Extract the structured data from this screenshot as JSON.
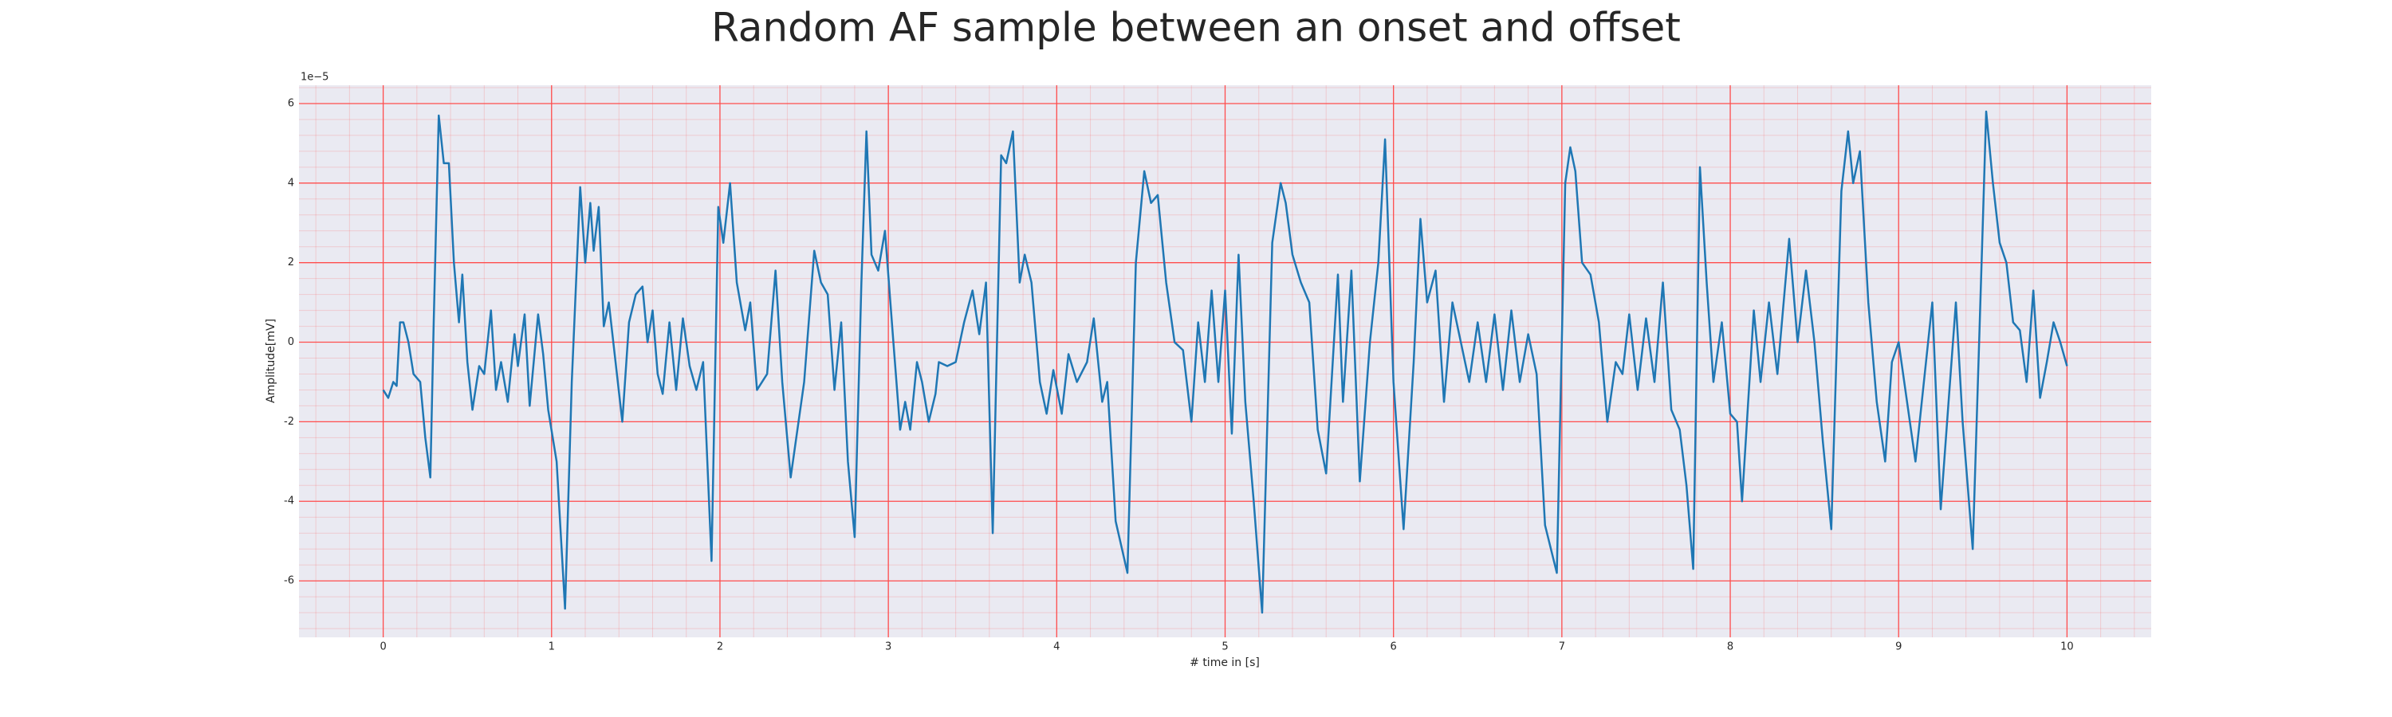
{
  "chart_data": {
    "type": "line",
    "title": "Random AF sample between an onset and offset",
    "xlabel": "# time in [s]",
    "ylabel": "Amplitude[mV]",
    "y_offset_label": "1e−5",
    "xlim": [
      -0.5,
      10.5
    ],
    "ylim": [
      -7.42,
      6.46
    ],
    "xticks": [
      0,
      1,
      2,
      3,
      4,
      5,
      6,
      7,
      8,
      9,
      10
    ],
    "yticks": [
      -6,
      -4,
      -2,
      0,
      2,
      4,
      6
    ],
    "grid": true,
    "minor_grid": true,
    "grid_color": "#ff4d4d",
    "background": "#eaeaf2",
    "x": [
      0.0,
      0.03,
      0.06,
      0.08,
      0.1,
      0.12,
      0.15,
      0.18,
      0.22,
      0.25,
      0.28,
      0.3,
      0.33,
      0.36,
      0.39,
      0.42,
      0.45,
      0.47,
      0.5,
      0.53,
      0.57,
      0.6,
      0.64,
      0.67,
      0.7,
      0.74,
      0.78,
      0.8,
      0.84,
      0.87,
      0.92,
      0.95,
      0.98,
      1.03,
      1.08,
      1.12,
      1.17,
      1.2,
      1.23,
      1.25,
      1.28,
      1.31,
      1.34,
      1.38,
      1.42,
      1.46,
      1.5,
      1.54,
      1.57,
      1.6,
      1.63,
      1.66,
      1.7,
      1.74,
      1.78,
      1.82,
      1.86,
      1.9,
      1.95,
      1.99,
      2.02,
      2.06,
      2.1,
      2.15,
      2.18,
      2.22,
      2.28,
      2.33,
      2.37,
      2.42,
      2.45,
      2.5,
      2.56,
      2.6,
      2.64,
      2.68,
      2.72,
      2.76,
      2.8,
      2.84,
      2.87,
      2.9,
      2.94,
      2.98,
      3.03,
      3.07,
      3.1,
      3.13,
      3.17,
      3.2,
      3.24,
      3.28,
      3.3,
      3.35,
      3.4,
      3.45,
      3.5,
      3.54,
      3.58,
      3.62,
      3.67,
      3.7,
      3.74,
      3.78,
      3.81,
      3.85,
      3.9,
      3.94,
      3.98,
      4.03,
      4.07,
      4.12,
      4.18,
      4.22,
      4.27,
      4.3,
      4.35,
      4.42,
      4.47,
      4.52,
      4.56,
      4.6,
      4.65,
      4.7,
      4.75,
      4.8,
      4.84,
      4.88,
      4.92,
      4.96,
      5.0,
      5.04,
      5.08,
      5.12,
      5.17,
      5.22,
      5.28,
      5.33,
      5.36,
      5.4,
      5.45,
      5.5,
      5.55,
      5.6,
      5.67,
      5.7,
      5.75,
      5.8,
      5.86,
      5.91,
      5.95,
      6.0,
      6.06,
      6.12,
      6.16,
      6.2,
      6.25,
      6.3,
      6.35,
      6.4,
      6.45,
      6.5,
      6.55,
      6.6,
      6.65,
      6.7,
      6.75,
      6.8,
      6.85,
      6.9,
      6.97,
      7.02,
      7.05,
      7.08,
      7.12,
      7.17,
      7.22,
      7.27,
      7.32,
      7.36,
      7.4,
      7.45,
      7.5,
      7.55,
      7.6,
      7.65,
      7.7,
      7.74,
      7.78,
      7.82,
      7.86,
      7.9,
      7.95,
      8.0,
      8.04,
      8.07,
      8.14,
      8.18,
      8.23,
      8.28,
      8.35,
      8.4,
      8.45,
      8.5,
      8.55,
      8.6,
      8.66,
      8.7,
      8.73,
      8.77,
      8.82,
      8.87,
      8.92,
      8.96,
      9.0,
      9.05,
      9.1,
      9.15,
      9.2,
      9.25,
      9.3,
      9.34,
      9.38,
      9.44,
      9.5,
      9.52,
      9.56,
      9.6,
      9.64,
      9.68,
      9.72,
      9.76,
      9.8,
      9.84,
      9.88,
      9.92,
      9.96,
      10.0
    ],
    "series": [
      {
        "color": "#1f77b4",
        "values": [
          -1.2,
          -1.4,
          -1.0,
          -1.1,
          0.5,
          0.5,
          0.0,
          -0.8,
          -1.0,
          -2.4,
          -3.4,
          0.5,
          5.7,
          4.5,
          4.5,
          2.0,
          0.5,
          1.7,
          -0.5,
          -1.7,
          -0.6,
          -0.8,
          0.8,
          -1.2,
          -0.5,
          -1.5,
          0.2,
          -0.6,
          0.7,
          -1.6,
          0.7,
          -0.3,
          -1.7,
          -3.0,
          -6.7,
          -1.0,
          3.9,
          2.0,
          3.5,
          2.3,
          3.4,
          0.4,
          1.0,
          -0.5,
          -2.0,
          0.5,
          1.2,
          1.4,
          0.0,
          0.8,
          -0.8,
          -1.3,
          0.5,
          -1.2,
          0.6,
          -0.6,
          -1.2,
          -0.5,
          -5.5,
          3.4,
          2.5,
          4.0,
          1.5,
          0.3,
          1.0,
          -1.2,
          -0.8,
          1.8,
          -1.0,
          -3.4,
          -2.5,
          -1.0,
          2.3,
          1.5,
          1.2,
          -1.2,
          0.5,
          -3.0,
          -4.9,
          1.5,
          5.3,
          2.2,
          1.8,
          2.8,
          0.0,
          -2.2,
          -1.5,
          -2.2,
          -0.5,
          -1.0,
          -2.0,
          -1.3,
          -0.5,
          -0.6,
          -0.5,
          0.5,
          1.3,
          0.2,
          1.5,
          -4.8,
          4.7,
          4.5,
          5.3,
          1.5,
          2.2,
          1.5,
          -1.0,
          -1.8,
          -0.7,
          -1.8,
          -0.3,
          -1.0,
          -0.5,
          0.6,
          -1.5,
          -1.0,
          -4.5,
          -5.8,
          2.0,
          4.3,
          3.5,
          3.7,
          1.5,
          0.0,
          -0.2,
          -2.0,
          0.5,
          -1.0,
          1.3,
          -1.0,
          1.3,
          -2.3,
          2.2,
          -1.5,
          -4.0,
          -6.8,
          2.5,
          4.0,
          3.5,
          2.2,
          1.5,
          1.0,
          -2.2,
          -3.3,
          1.7,
          -1.5,
          1.8,
          -3.5,
          0.0,
          2.0,
          5.1,
          -1.0,
          -4.7,
          -0.5,
          3.1,
          1.0,
          1.8,
          -1.5,
          1.0,
          0.0,
          -1.0,
          0.5,
          -1.0,
          0.7,
          -1.2,
          0.8,
          -1.0,
          0.2,
          -0.8,
          -4.6,
          -5.8,
          4.0,
          4.9,
          4.3,
          2.0,
          1.7,
          0.5,
          -2.0,
          -0.5,
          -0.8,
          0.7,
          -1.2,
          0.6,
          -1.0,
          1.5,
          -1.7,
          -2.2,
          -3.6,
          -5.7,
          4.4,
          1.5,
          -1.0,
          0.5,
          -1.8,
          -2.0,
          -4.0,
          0.8,
          -1.0,
          1.0,
          -0.8,
          2.6,
          0.0,
          1.8,
          0.0,
          -2.5,
          -4.7,
          3.8,
          5.3,
          4.0,
          4.8,
          1.0,
          -1.5,
          -3.0,
          -0.5,
          0.0,
          -1.5,
          -3.0,
          -1.0,
          1.0,
          -4.2,
          -1.3,
          1.0,
          -2.0,
          -5.2,
          3.0,
          5.8,
          4.0,
          2.5,
          2.0,
          0.5,
          0.3,
          -1.0,
          1.3,
          -1.4,
          -0.5,
          0.5,
          0.0,
          -0.6
        ]
      }
    ]
  }
}
